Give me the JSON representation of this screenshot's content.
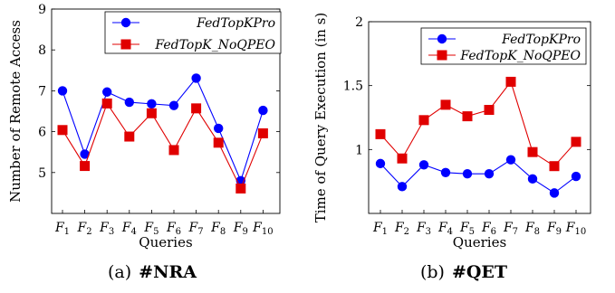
{
  "chart_data": [
    {
      "type": "line",
      "categories": [
        "F1",
        "F2",
        "F3",
        "F4",
        "F5",
        "F6",
        "F7",
        "F8",
        "F9",
        "F10"
      ],
      "series": [
        {
          "name": "FedTopKPro",
          "color": "#0000ff",
          "marker": "circle",
          "values": [
            7.0,
            5.45,
            6.97,
            6.72,
            6.68,
            6.64,
            7.31,
            6.08,
            4.8,
            6.52
          ]
        },
        {
          "name": "FedTopK_NoQPEO",
          "color": "#e00000",
          "marker": "square",
          "values": [
            6.04,
            5.16,
            6.69,
            5.88,
            6.45,
            5.55,
            6.57,
            5.73,
            4.61,
            5.96
          ]
        }
      ],
      "xlabel": "Queries",
      "ylabel": "Number of Remote Access",
      "ylim": [
        4,
        9
      ],
      "yticks": [
        "5",
        "6",
        "7",
        "8",
        "9"
      ],
      "legend_position": "top-right",
      "grid": false,
      "caption": {
        "prefix": "(a)",
        "label": "#NRA"
      }
    },
    {
      "type": "line",
      "categories": [
        "F1",
        "F2",
        "F3",
        "F4",
        "F5",
        "F6",
        "F7",
        "F8",
        "F9",
        "F10"
      ],
      "series": [
        {
          "name": "FedTopKPro",
          "color": "#0000ff",
          "marker": "circle",
          "values": [
            0.89,
            0.71,
            0.88,
            0.82,
            0.81,
            0.81,
            0.92,
            0.77,
            0.66,
            0.79
          ]
        },
        {
          "name": "FedTopK_NoQPEO",
          "color": "#e00000",
          "marker": "square",
          "values": [
            1.12,
            0.93,
            1.23,
            1.35,
            1.26,
            1.31,
            1.53,
            0.98,
            0.87,
            1.06
          ]
        }
      ],
      "xlabel": "Queries",
      "ylabel": "Time of Query Execution (in s)",
      "ylim": [
        0.5,
        2
      ],
      "yticks": [
        "1",
        "1.5",
        "2"
      ],
      "legend_position": "top-right",
      "grid": false,
      "caption": {
        "prefix": "(b)",
        "label": "#QET"
      }
    }
  ]
}
